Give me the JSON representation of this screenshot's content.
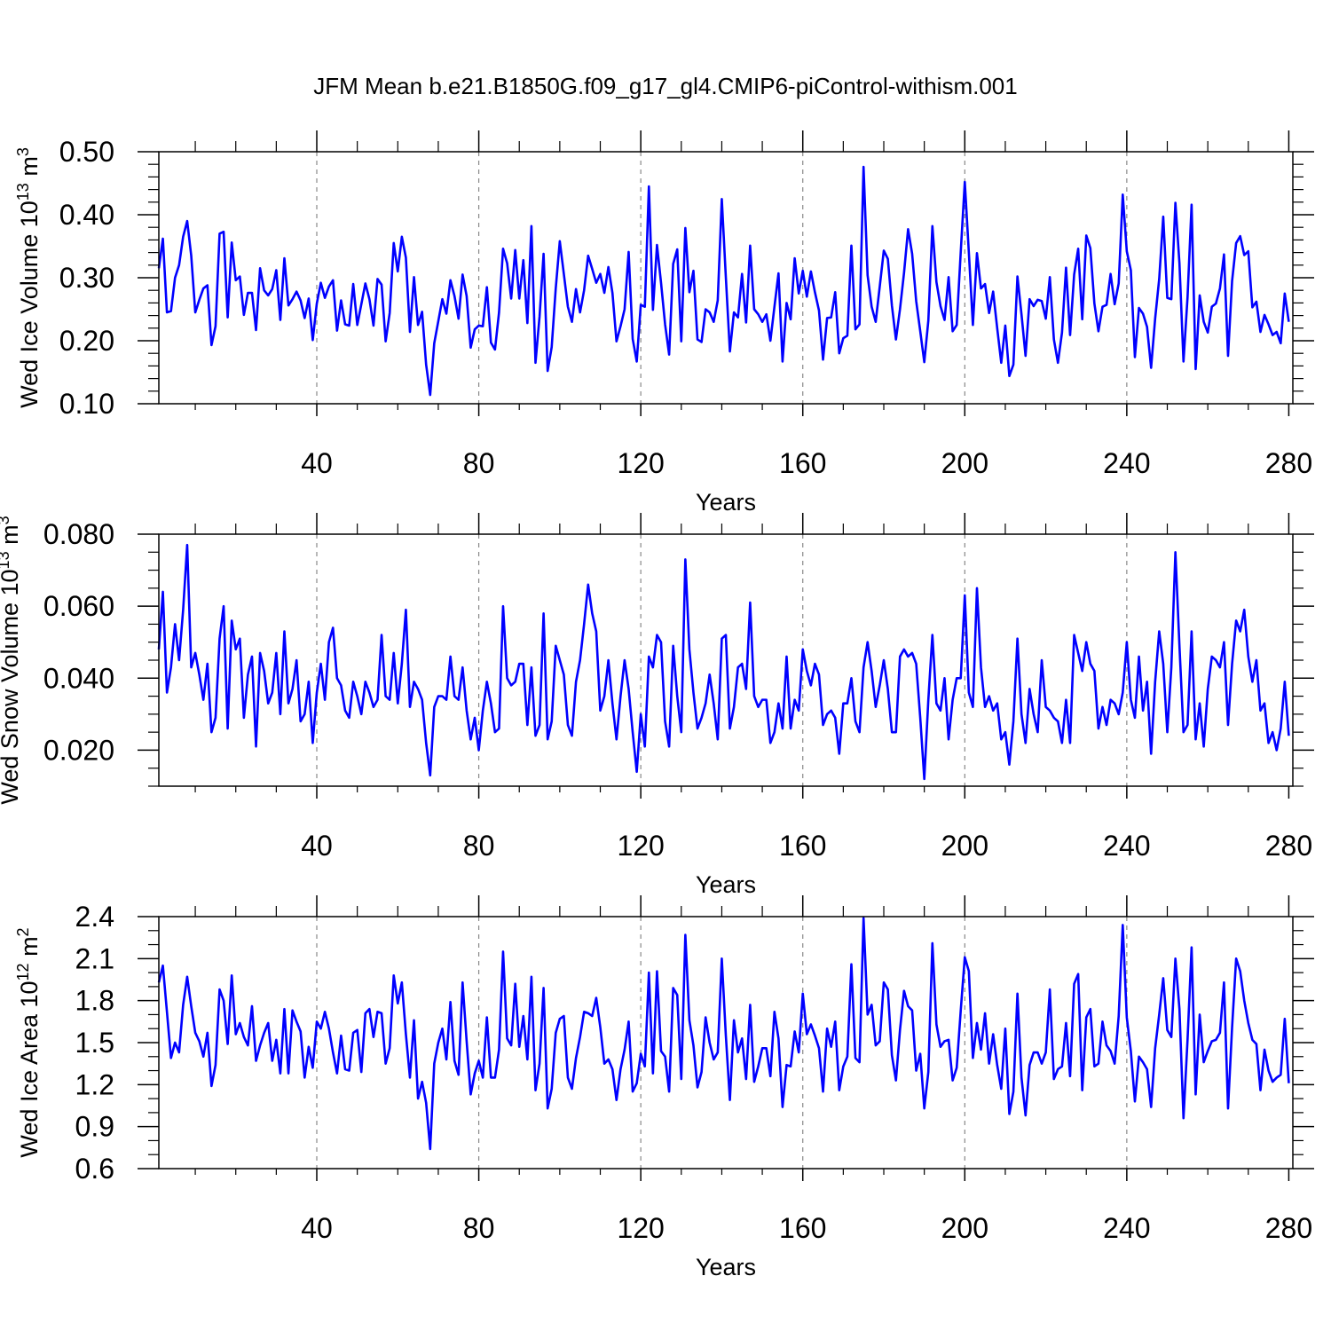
{
  "figure": {
    "title": "JFM Mean b.e21.B1850G.f09_g17_gl4.CMIP6-piControl-withism.001"
  },
  "colors": {
    "line": "#0000ff",
    "axis": "#000000",
    "grid": "#888888"
  },
  "chart_data": [
    {
      "id": "ice-volume",
      "type": "line",
      "ylabel_prefix": "Wed Ice Volume 10",
      "ylabel_exp": "13",
      "ylabel_unit": " m",
      "ylabel_unit_exp": "3",
      "xlabel": "Years",
      "xlim": [
        1,
        281
      ],
      "ylim": [
        0.1,
        0.5
      ],
      "xticks": [
        40,
        80,
        120,
        160,
        200,
        240,
        280
      ],
      "xticklabels": [
        "40",
        "80",
        "120",
        "160",
        "200",
        "240",
        "280"
      ],
      "yticks": [
        0.1,
        0.2,
        0.3,
        0.4,
        0.5
      ],
      "yticklabels": [
        "0.10",
        "0.20",
        "0.30",
        "0.40",
        "0.50"
      ],
      "ymin_step": 0.02,
      "xgrid": [
        40,
        80,
        120,
        160,
        200,
        240
      ],
      "series": [
        {
          "name": "Wed Ice Volume",
          "x_start": 1,
          "values": [
            0.315,
            0.362,
            0.245,
            0.247,
            0.3,
            0.32,
            0.365,
            0.39,
            0.335,
            0.245,
            0.265,
            0.283,
            0.288,
            0.193,
            0.223,
            0.37,
            0.373,
            0.237,
            0.356,
            0.296,
            0.302,
            0.241,
            0.276,
            0.276,
            0.217,
            0.315,
            0.28,
            0.272,
            0.282,
            0.312,
            0.233,
            0.331,
            0.256,
            0.266,
            0.278,
            0.264,
            0.236,
            0.267,
            0.201,
            0.259,
            0.292,
            0.268,
            0.286,
            0.296,
            0.216,
            0.264,
            0.226,
            0.224,
            0.29,
            0.225,
            0.258,
            0.291,
            0.266,
            0.224,
            0.298,
            0.289,
            0.199,
            0.244,
            0.355,
            0.31,
            0.365,
            0.332,
            0.214,
            0.301,
            0.225,
            0.246,
            0.162,
            0.114,
            0.196,
            0.231,
            0.266,
            0.243,
            0.296,
            0.271,
            0.235,
            0.305,
            0.271,
            0.189,
            0.218,
            0.224,
            0.223,
            0.285,
            0.197,
            0.186,
            0.245,
            0.346,
            0.323,
            0.267,
            0.344,
            0.267,
            0.328,
            0.228,
            0.382,
            0.165,
            0.238,
            0.338,
            0.152,
            0.19,
            0.283,
            0.358,
            0.306,
            0.254,
            0.23,
            0.282,
            0.245,
            0.28,
            0.335,
            0.314,
            0.292,
            0.306,
            0.276,
            0.317,
            0.276,
            0.199,
            0.223,
            0.25,
            0.341,
            0.203,
            0.167,
            0.257,
            0.254,
            0.445,
            0.249,
            0.352,
            0.292,
            0.226,
            0.178,
            0.322,
            0.345,
            0.199,
            0.379,
            0.277,
            0.311,
            0.202,
            0.198,
            0.25,
            0.245,
            0.23,
            0.264,
            0.425,
            0.301,
            0.183,
            0.245,
            0.237,
            0.306,
            0.229,
            0.351,
            0.25,
            0.242,
            0.23,
            0.242,
            0.2,
            0.254,
            0.307,
            0.167,
            0.26,
            0.234,
            0.331,
            0.275,
            0.311,
            0.27,
            0.31,
            0.277,
            0.248,
            0.17,
            0.236,
            0.237,
            0.277,
            0.18,
            0.204,
            0.208,
            0.351,
            0.218,
            0.226,
            0.476,
            0.304,
            0.254,
            0.23,
            0.286,
            0.343,
            0.33,
            0.256,
            0.202,
            0.25,
            0.308,
            0.377,
            0.338,
            0.263,
            0.215,
            0.166,
            0.232,
            0.382,
            0.293,
            0.255,
            0.233,
            0.301,
            0.215,
            0.225,
            0.341,
            0.452,
            0.34,
            0.225,
            0.339,
            0.283,
            0.29,
            0.244,
            0.278,
            0.22,
            0.165,
            0.224,
            0.144,
            0.162,
            0.302,
            0.242,
            0.176,
            0.266,
            0.255,
            0.265,
            0.263,
            0.235,
            0.301,
            0.202,
            0.165,
            0.213,
            0.316,
            0.209,
            0.305,
            0.346,
            0.234,
            0.367,
            0.347,
            0.259,
            0.215,
            0.254,
            0.257,
            0.306,
            0.258,
            0.291,
            0.432,
            0.342,
            0.312,
            0.174,
            0.252,
            0.243,
            0.222,
            0.157,
            0.235,
            0.298,
            0.397,
            0.268,
            0.266,
            0.419,
            0.323,
            0.167,
            0.269,
            0.416,
            0.155,
            0.272,
            0.23,
            0.213,
            0.254,
            0.259,
            0.283,
            0.337,
            0.176,
            0.295,
            0.355,
            0.366,
            0.336,
            0.342,
            0.253,
            0.262,
            0.214,
            0.241,
            0.226,
            0.209,
            0.214,
            0.196,
            0.275,
            0.23
          ]
        }
      ]
    },
    {
      "id": "snow-volume",
      "type": "line",
      "ylabel_prefix": "Wed Snow Volume 10",
      "ylabel_exp": "13",
      "ylabel_unit": " m",
      "ylabel_unit_exp": "3",
      "xlabel": "Years",
      "xlim": [
        1,
        281
      ],
      "ylim": [
        0.01,
        0.08
      ],
      "xticks": [
        40,
        80,
        120,
        160,
        200,
        240,
        280
      ],
      "xticklabels": [
        "40",
        "80",
        "120",
        "160",
        "200",
        "240",
        "280"
      ],
      "yticks": [
        0.02,
        0.04,
        0.06,
        0.08
      ],
      "yticklabels": [
        "0.020",
        "0.040",
        "0.060",
        "0.080"
      ],
      "ymin_step": 0.005,
      "xgrid": [
        40,
        80,
        120,
        160,
        200,
        240
      ],
      "series": [
        {
          "name": "Wed Snow Volume",
          "x_start": 1,
          "values": [
            0.048,
            0.064,
            0.036,
            0.043,
            0.055,
            0.045,
            0.059,
            0.077,
            0.043,
            0.047,
            0.041,
            0.034,
            0.044,
            0.025,
            0.029,
            0.051,
            0.06,
            0.026,
            0.056,
            0.048,
            0.051,
            0.029,
            0.041,
            0.046,
            0.021,
            0.047,
            0.042,
            0.033,
            0.036,
            0.047,
            0.03,
            0.053,
            0.033,
            0.037,
            0.045,
            0.028,
            0.03,
            0.039,
            0.022,
            0.036,
            0.044,
            0.034,
            0.05,
            0.054,
            0.04,
            0.038,
            0.031,
            0.029,
            0.039,
            0.035,
            0.03,
            0.039,
            0.036,
            0.032,
            0.034,
            0.052,
            0.035,
            0.034,
            0.047,
            0.033,
            0.044,
            0.059,
            0.032,
            0.039,
            0.037,
            0.034,
            0.022,
            0.013,
            0.032,
            0.035,
            0.035,
            0.034,
            0.046,
            0.035,
            0.034,
            0.043,
            0.031,
            0.023,
            0.029,
            0.02,
            0.031,
            0.039,
            0.033,
            0.025,
            0.026,
            0.06,
            0.04,
            0.038,
            0.039,
            0.044,
            0.044,
            0.027,
            0.043,
            0.024,
            0.027,
            0.058,
            0.023,
            0.028,
            0.049,
            0.045,
            0.041,
            0.027,
            0.024,
            0.039,
            0.045,
            0.055,
            0.066,
            0.058,
            0.053,
            0.031,
            0.035,
            0.045,
            0.033,
            0.023,
            0.035,
            0.045,
            0.037,
            0.025,
            0.014,
            0.03,
            0.021,
            0.046,
            0.043,
            0.052,
            0.05,
            0.028,
            0.021,
            0.049,
            0.035,
            0.025,
            0.073,
            0.048,
            0.036,
            0.026,
            0.029,
            0.033,
            0.041,
            0.033,
            0.023,
            0.051,
            0.052,
            0.026,
            0.032,
            0.043,
            0.044,
            0.037,
            0.061,
            0.035,
            0.032,
            0.034,
            0.034,
            0.022,
            0.025,
            0.033,
            0.026,
            0.046,
            0.026,
            0.034,
            0.031,
            0.048,
            0.042,
            0.038,
            0.044,
            0.041,
            0.027,
            0.03,
            0.031,
            0.029,
            0.019,
            0.033,
            0.033,
            0.04,
            0.028,
            0.025,
            0.043,
            0.05,
            0.042,
            0.032,
            0.038,
            0.045,
            0.037,
            0.025,
            0.025,
            0.046,
            0.048,
            0.046,
            0.047,
            0.044,
            0.029,
            0.012,
            0.034,
            0.052,
            0.033,
            0.031,
            0.04,
            0.023,
            0.034,
            0.04,
            0.04,
            0.063,
            0.036,
            0.032,
            0.065,
            0.043,
            0.032,
            0.035,
            0.031,
            0.033,
            0.023,
            0.025,
            0.016,
            0.028,
            0.051,
            0.03,
            0.022,
            0.037,
            0.03,
            0.025,
            0.045,
            0.032,
            0.031,
            0.029,
            0.028,
            0.022,
            0.034,
            0.022,
            0.052,
            0.047,
            0.042,
            0.05,
            0.044,
            0.042,
            0.026,
            0.032,
            0.027,
            0.034,
            0.033,
            0.03,
            0.036,
            0.05,
            0.034,
            0.029,
            0.046,
            0.031,
            0.039,
            0.019,
            0.039,
            0.053,
            0.044,
            0.025,
            0.043,
            0.075,
            0.049,
            0.025,
            0.027,
            0.053,
            0.023,
            0.033,
            0.021,
            0.037,
            0.046,
            0.045,
            0.043,
            0.05,
            0.027,
            0.044,
            0.056,
            0.053,
            0.059,
            0.046,
            0.039,
            0.045,
            0.031,
            0.033,
            0.022,
            0.025,
            0.02,
            0.026,
            0.039,
            0.024
          ]
        }
      ]
    },
    {
      "id": "ice-area",
      "type": "line",
      "ylabel_prefix": "Wed Ice Area 10",
      "ylabel_exp": "12",
      "ylabel_unit": " m",
      "ylabel_unit_exp": "2",
      "xlabel": "Years",
      "xlim": [
        1,
        281
      ],
      "ylim": [
        0.6,
        2.4
      ],
      "xticks": [
        40,
        80,
        120,
        160,
        200,
        240,
        280
      ],
      "xticklabels": [
        "40",
        "80",
        "120",
        "160",
        "200",
        "240",
        "280"
      ],
      "yticks": [
        0.6,
        0.9,
        1.2,
        1.5,
        1.8,
        2.1,
        2.4
      ],
      "yticklabels": [
        "0.6",
        "0.9",
        "1.2",
        "1.5",
        "1.8",
        "2.1",
        "2.4"
      ],
      "ymin_step": 0.1,
      "xgrid": [
        40,
        80,
        120,
        160,
        200,
        240
      ],
      "series": [
        {
          "name": "Wed Ice Area",
          "x_start": 1,
          "values": [
            1.93,
            2.05,
            1.72,
            1.39,
            1.5,
            1.43,
            1.77,
            1.97,
            1.76,
            1.57,
            1.51,
            1.4,
            1.57,
            1.19,
            1.34,
            1.88,
            1.8,
            1.49,
            1.98,
            1.56,
            1.64,
            1.54,
            1.48,
            1.76,
            1.37,
            1.48,
            1.57,
            1.64,
            1.37,
            1.52,
            1.28,
            1.74,
            1.28,
            1.73,
            1.65,
            1.58,
            1.25,
            1.47,
            1.32,
            1.65,
            1.6,
            1.72,
            1.6,
            1.43,
            1.28,
            1.55,
            1.31,
            1.3,
            1.57,
            1.59,
            1.29,
            1.71,
            1.74,
            1.54,
            1.72,
            1.71,
            1.35,
            1.46,
            1.98,
            1.78,
            1.93,
            1.56,
            1.25,
            1.66,
            1.1,
            1.22,
            1.07,
            0.74,
            1.35,
            1.5,
            1.6,
            1.38,
            1.79,
            1.37,
            1.27,
            1.93,
            1.51,
            1.13,
            1.28,
            1.37,
            1.25,
            1.68,
            1.25,
            1.25,
            1.45,
            2.15,
            1.53,
            1.48,
            1.92,
            1.47,
            1.69,
            1.38,
            1.97,
            1.16,
            1.35,
            1.89,
            1.03,
            1.17,
            1.57,
            1.67,
            1.69,
            1.25,
            1.17,
            1.39,
            1.54,
            1.72,
            1.71,
            1.69,
            1.82,
            1.61,
            1.35,
            1.38,
            1.31,
            1.09,
            1.31,
            1.45,
            1.65,
            1.15,
            1.21,
            1.42,
            1.33,
            2.0,
            1.28,
            2.01,
            1.44,
            1.4,
            1.15,
            1.89,
            1.84,
            1.24,
            2.27,
            1.66,
            1.48,
            1.18,
            1.29,
            1.68,
            1.5,
            1.38,
            1.43,
            2.1,
            1.55,
            1.09,
            1.66,
            1.43,
            1.53,
            1.24,
            1.77,
            1.22,
            1.33,
            1.46,
            1.46,
            1.26,
            1.72,
            1.53,
            1.04,
            1.34,
            1.33,
            1.58,
            1.43,
            1.85,
            1.56,
            1.63,
            1.55,
            1.46,
            1.15,
            1.6,
            1.47,
            1.65,
            1.16,
            1.33,
            1.4,
            2.06,
            1.39,
            1.36,
            2.39,
            1.7,
            1.77,
            1.48,
            1.51,
            1.93,
            1.88,
            1.41,
            1.23,
            1.59,
            1.87,
            1.76,
            1.73,
            1.3,
            1.42,
            1.03,
            1.29,
            2.21,
            1.63,
            1.47,
            1.51,
            1.52,
            1.23,
            1.32,
            1.73,
            2.11,
            2.01,
            1.39,
            1.64,
            1.45,
            1.71,
            1.35,
            1.56,
            1.34,
            1.17,
            1.6,
            0.99,
            1.15,
            1.85,
            1.25,
            0.98,
            1.34,
            1.43,
            1.43,
            1.35,
            1.43,
            1.88,
            1.24,
            1.31,
            1.33,
            1.64,
            1.26,
            1.92,
            1.99,
            1.16,
            1.68,
            1.74,
            1.33,
            1.35,
            1.65,
            1.48,
            1.44,
            1.35,
            1.69,
            2.34,
            1.68,
            1.44,
            1.08,
            1.4,
            1.36,
            1.31,
            1.04,
            1.46,
            1.7,
            1.96,
            1.59,
            1.54,
            2.1,
            1.74,
            0.96,
            1.52,
            2.18,
            1.13,
            1.7,
            1.36,
            1.44,
            1.51,
            1.52,
            1.57,
            1.93,
            1.03,
            1.61,
            2.1,
            2.01,
            1.8,
            1.64,
            1.52,
            1.49,
            1.16,
            1.45,
            1.3,
            1.22,
            1.25,
            1.27,
            1.67,
            1.21
          ]
        }
      ]
    }
  ]
}
